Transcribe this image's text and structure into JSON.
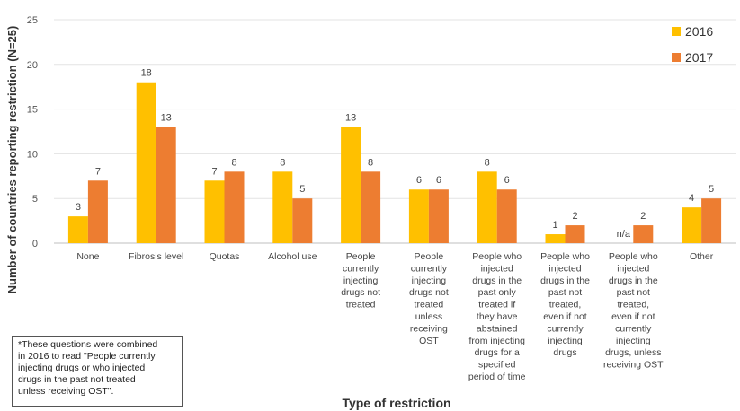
{
  "chart_data": {
    "type": "bar",
    "xlabel": "Type of restriction",
    "ylabel": "Number of countries reporting restriction (N=25)",
    "ylim": [
      0,
      25
    ],
    "yticks": [
      "0",
      "5",
      "10",
      "15",
      "20",
      "25"
    ],
    "grid": true,
    "legend_position": "top-right",
    "categories": [
      [
        "None"
      ],
      [
        "Fibrosis level"
      ],
      [
        "Quotas"
      ],
      [
        "Alcohol use"
      ],
      [
        "People",
        "currently",
        "injecting",
        "drugs not",
        "treated"
      ],
      [
        "People",
        "currently",
        "injecting",
        "drugs not",
        "treated",
        "unless",
        "receiving",
        "OST"
      ],
      [
        "People who",
        "injected",
        "drugs in the",
        "past only",
        "treated if",
        "they have",
        "abstained",
        "from injecting",
        "drugs for a",
        "specified",
        "period of time"
      ],
      [
        "People who",
        "injected",
        "drugs in the",
        "past not",
        "treated,",
        "even if not",
        "currently",
        "injecting",
        "drugs"
      ],
      [
        "People who",
        "injected",
        "drugs in the",
        "past not",
        "treated,",
        "even if not",
        "currently",
        "injecting",
        "drugs, unless",
        "receiving OST"
      ],
      [
        "Other"
      ]
    ],
    "series": [
      {
        "name": "2016",
        "color": "#FFC000",
        "values": [
          3,
          18,
          7,
          8,
          13,
          6,
          8,
          1,
          null,
          4
        ],
        "labels": [
          "3",
          "18",
          "7",
          "8",
          "13",
          "6",
          "8",
          "1",
          "n/a",
          "4"
        ]
      },
      {
        "name": "2017",
        "color": "#ED7D31",
        "values": [
          7,
          13,
          8,
          5,
          8,
          6,
          6,
          2,
          2,
          5
        ],
        "labels": [
          "7",
          "13",
          "8",
          "5",
          "8",
          "6",
          "6",
          "2",
          "2",
          "5"
        ]
      }
    ]
  },
  "note": {
    "lines": [
      "*These questions were combined",
      "in 2016 to read \"People currently",
      "injecting drugs or who injected",
      "drugs in the past not treated",
      "unless receiving OST\"."
    ]
  }
}
